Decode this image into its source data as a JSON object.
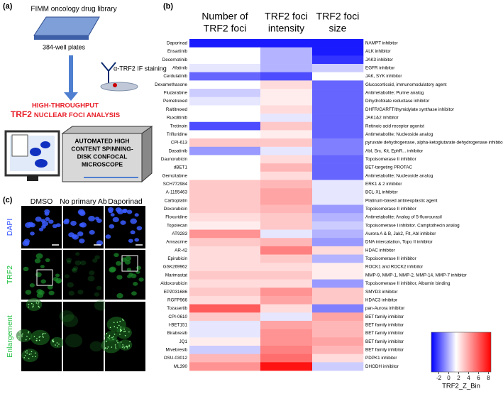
{
  "panel_a": {
    "label": "(a)",
    "library": "FIMM oncology drug library",
    "plates": "384-well plates",
    "staining": "α-TRF2 IF staining",
    "analysis_1": "HIGH-THROUGHPUT",
    "analysis_2_strong": "TRF2",
    "analysis_2_rest": "NUCLEAR FOCI ANALYSIS",
    "microscope": [
      "AUTOMATED HIGH",
      "CONTENT SPINNING-",
      "DISK CONFOCAL",
      "MICROSCOPE"
    ]
  },
  "panel_c": {
    "label": "(c)",
    "columns": [
      "DMSO",
      "No primary Ab",
      "Daporinad"
    ],
    "rows": [
      "DAPI",
      "TRF2",
      "Enlargement"
    ]
  },
  "panel_b": {
    "label": "(b)",
    "type": "heatmap",
    "columns": [
      [
        "Number of",
        "TRF2 foci"
      ],
      [
        "TRF2 foci",
        "intensity"
      ],
      [
        "TRF2 foci",
        "size"
      ]
    ],
    "rows": [
      "Daporinad",
      "Ensartinib",
      "Decernotinib",
      "Afatinib",
      "Cerdulatinib",
      "Dexamethasone",
      "Fludarabine",
      "Pemetrexed",
      "Raltitrexed",
      "Ruxolitinib",
      "Tretinoin",
      "Trifluridine",
      "CPI-613",
      "Dasatinib",
      "Daunorubicin",
      "dBET1",
      "Gemcitabine",
      "SCH772984",
      "A-1155463",
      "Carboplatin",
      "Doxorubicin",
      "Floxuridine",
      "Topotecan",
      "AT9283",
      "Amsacrine",
      "AR-42",
      "Epirubicin",
      "GSK269962",
      "Marimastat",
      "Aldoxorubicin",
      "EPZ031686",
      "RGFP966",
      "Tozasertib",
      "CPI-0610",
      "I-BET151",
      "Birabresib",
      "JQ1",
      "Mivebresib",
      "OSU-03012",
      "ML390"
    ],
    "descriptions": [
      "NAMPT inhibitor",
      "ALK inhibitor",
      "JAK3 inhibitor",
      "EGFR inhibitor",
      "JAK, SYK inhibitor",
      "Glucocorticoid, immunomodulatory agent",
      "Antimetabolite; Purine analog",
      "Dihydrofolate reductase inhibitor",
      "DHFR/GARFT/thymidylate synthase inhibitor",
      "JAK1&2 inhibitor",
      "Retinoic acid receptor agonist",
      "Antimetabolite; Nucleoside analog",
      "pyruvate dehydrogenase, alpha-ketoglutarate dehydrogenase inhibitor",
      "Abl, Src, Kit, EphR... inhibitor",
      "Topoisomerase II inhibitor",
      "BET-targeting PROTAC",
      "Antimetabolite; Nucleoside analog",
      "ERK1 & 2 inhibitor",
      "BCL-XL inhibitor",
      "Platinum-based antineoplastic agent",
      "Topoisomerase II inhibitor",
      "Antimetabolite; Analog of 5-fluorouracil",
      "Topoisomerase I inhibitor. Camptothecin analog",
      "Aurora A & B, Jak2, Flt, Abl inhibitor",
      "DNA intercalation, Topo II inhibitor",
      "HDAC inhibitor",
      "Topoisomerase II inhibitor",
      "ROCK1 and ROCK2 inhibitor",
      "MMP-9, MMP-1, MMP-2, MMP-14, MMP-7 inhibitor",
      "Topoisomerase II inhibitor, Albumin binding",
      "SMYD3 inhibitor",
      "HDAC3 inhibitor",
      "pan-Aurora inhibitor",
      "BET family inhibitor",
      "BET family inhibitor",
      "BET family inhibitor",
      "BET family inhibitor",
      "BET family inhibitor",
      "PDPK1 inhibitor",
      "DHODH inhibitor"
    ],
    "values": [
      [
        -3,
        -3,
        -3
      ],
      [
        1.5,
        0,
        -3
      ],
      [
        1.5,
        0,
        -2.5
      ],
      [
        1,
        0,
        0.5
      ],
      [
        -1.5,
        -2,
        1.5
      ],
      [
        1.5,
        2.5,
        -1.5
      ],
      [
        0.5,
        2,
        -1.5
      ],
      [
        1,
        2,
        -1.5
      ],
      [
        1.5,
        2.5,
        -1.5
      ],
      [
        1.5,
        1,
        -1.5
      ],
      [
        -2,
        3,
        -1.5
      ],
      [
        1.5,
        2,
        -1.5
      ],
      [
        3,
        3,
        -1
      ],
      [
        -0.5,
        1,
        -1
      ],
      [
        1.5,
        2.5,
        -1.5
      ],
      [
        1.5,
        3.5,
        -1.5
      ],
      [
        1.5,
        2.5,
        -1.5
      ],
      [
        3,
        3.5,
        1
      ],
      [
        3,
        4,
        1
      ],
      [
        3,
        4,
        1
      ],
      [
        3,
        3.5,
        -0.5
      ],
      [
        2.5,
        3,
        0
      ],
      [
        2,
        3,
        0.5
      ],
      [
        4.5,
        1,
        0
      ],
      [
        3,
        3.5,
        -0.5
      ],
      [
        2.5,
        5,
        2.5
      ],
      [
        2.5,
        3,
        0
      ],
      [
        2.5,
        2.5,
        2
      ],
      [
        3,
        3,
        2
      ],
      [
        2.5,
        2.5,
        -0.5
      ],
      [
        3,
        4.5,
        3
      ],
      [
        2.5,
        4,
        3
      ],
      [
        6,
        2.5,
        -1
      ],
      [
        3,
        1,
        4
      ],
      [
        1,
        4,
        3.5
      ],
      [
        1,
        4.5,
        3.5
      ],
      [
        2,
        4.5,
        4
      ],
      [
        0.5,
        5,
        3.5
      ],
      [
        3.5,
        5.5,
        2.5
      ],
      [
        4.5,
        8,
        0.5
      ]
    ],
    "colorbar": {
      "label": "TRF2_Z_Bin",
      "ticks": [
        -2,
        0,
        2,
        4,
        6,
        8
      ],
      "clim": [
        -3.5,
        8.5
      ],
      "mid": 1.5,
      "low_color": "#0000ff",
      "mid_color": "#ffffff",
      "high_color": "#ff0000"
    }
  }
}
